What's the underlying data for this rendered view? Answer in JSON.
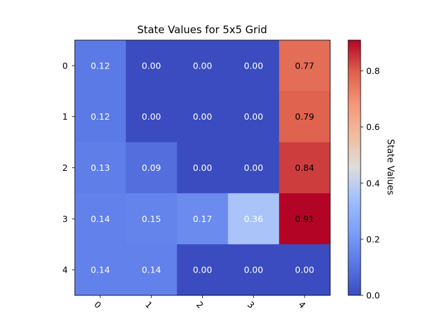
{
  "chart_data": {
    "type": "heatmap",
    "title": "State Values for 5x5 Grid",
    "x_tick_labels": [
      "0",
      "1",
      "2",
      "3",
      "4"
    ],
    "y_tick_labels": [
      "0",
      "1",
      "2",
      "3",
      "4"
    ],
    "values": [
      [
        0.12,
        0.0,
        0.0,
        0.0,
        0.77
      ],
      [
        0.12,
        0.0,
        0.0,
        0.0,
        0.79
      ],
      [
        0.13,
        0.09,
        0.0,
        0.0,
        0.84
      ],
      [
        0.14,
        0.15,
        0.17,
        0.36,
        0.91
      ],
      [
        0.14,
        0.14,
        0.0,
        0.0,
        0.0
      ]
    ],
    "value_labels": [
      [
        "0.12",
        "0.00",
        "0.00",
        "0.00",
        "0.77"
      ],
      [
        "0.12",
        "0.00",
        "0.00",
        "0.00",
        "0.79"
      ],
      [
        "0.13",
        "0.09",
        "0.00",
        "0.00",
        "0.84"
      ],
      [
        "0.14",
        "0.15",
        "0.17",
        "0.36",
        "0.91"
      ],
      [
        "0.14",
        "0.14",
        "0.00",
        "0.00",
        "0.00"
      ]
    ],
    "colormap": "coolwarm",
    "vmin": 0.0,
    "vmax": 0.91,
    "colorbar": {
      "label": "State Values",
      "ticks": [
        0.0,
        0.2,
        0.4,
        0.6,
        0.8
      ],
      "tick_labels": [
        "0.0",
        "0.2",
        "0.4",
        "0.6",
        "0.8"
      ]
    },
    "x_tick_rotation": "45 degrees"
  }
}
